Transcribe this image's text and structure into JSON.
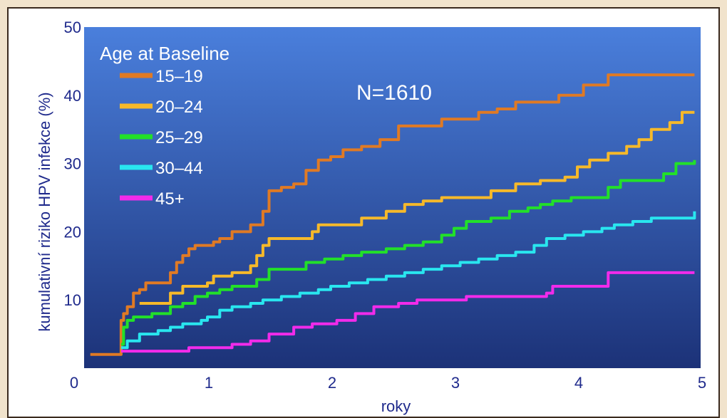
{
  "chart_data": {
    "type": "line",
    "line_style": "step",
    "title": "",
    "xlabel": "roky",
    "ylabel": "kumulativní riziko HPV infekce (%)",
    "xlim": [
      0,
      5
    ],
    "ylim": [
      0,
      50
    ],
    "x_ticks": [
      "0",
      "1",
      "2",
      "3",
      "4",
      "5"
    ],
    "y_ticks": [
      "10",
      "20",
      "30",
      "40",
      "50"
    ],
    "grid": false,
    "background_gradient": [
      "#4a7fdc",
      "#1c3278"
    ],
    "annotation": "N=1610",
    "legend": {
      "title": "Age at Baseline",
      "placement": "top-left"
    },
    "series": [
      {
        "name": "15–19",
        "color": "#e07a24",
        "points": [
          [
            0.05,
            2
          ],
          [
            0.28,
            2
          ],
          [
            0.3,
            7
          ],
          [
            0.32,
            8
          ],
          [
            0.35,
            9
          ],
          [
            0.4,
            11
          ],
          [
            0.45,
            11.5
          ],
          [
            0.5,
            12.5
          ],
          [
            0.6,
            12.5
          ],
          [
            0.7,
            14
          ],
          [
            0.75,
            15.5
          ],
          [
            0.8,
            16.5
          ],
          [
            0.85,
            17.5
          ],
          [
            0.9,
            18
          ],
          [
            1.0,
            18
          ],
          [
            1.05,
            18.5
          ],
          [
            1.1,
            19
          ],
          [
            1.2,
            20
          ],
          [
            1.35,
            21
          ],
          [
            1.45,
            23
          ],
          [
            1.5,
            26
          ],
          [
            1.6,
            26.5
          ],
          [
            1.7,
            27
          ],
          [
            1.8,
            29
          ],
          [
            1.9,
            30.5
          ],
          [
            2.0,
            31
          ],
          [
            2.1,
            32
          ],
          [
            2.25,
            32.5
          ],
          [
            2.4,
            33.5
          ],
          [
            2.55,
            35.5
          ],
          [
            2.7,
            35.5
          ],
          [
            2.9,
            36.5
          ],
          [
            3.05,
            36.5
          ],
          [
            3.2,
            37.5
          ],
          [
            3.35,
            38
          ],
          [
            3.5,
            39
          ],
          [
            3.65,
            39
          ],
          [
            3.85,
            40
          ],
          [
            4.05,
            41.5
          ],
          [
            4.25,
            43
          ],
          [
            4.5,
            43
          ],
          [
            4.95,
            43
          ]
        ]
      },
      {
        "name": "20–24",
        "color": "#f6b92a",
        "points": [
          [
            0.45,
            9.5
          ],
          [
            0.65,
            9.5
          ],
          [
            0.7,
            11
          ],
          [
            0.8,
            12
          ],
          [
            1.0,
            12.5
          ],
          [
            1.05,
            13.5
          ],
          [
            1.2,
            14
          ],
          [
            1.35,
            15
          ],
          [
            1.4,
            16.5
          ],
          [
            1.45,
            18
          ],
          [
            1.5,
            19
          ],
          [
            1.6,
            19
          ],
          [
            1.75,
            19
          ],
          [
            1.85,
            20
          ],
          [
            1.9,
            21
          ],
          [
            2.1,
            21
          ],
          [
            2.25,
            22
          ],
          [
            2.45,
            23
          ],
          [
            2.6,
            24
          ],
          [
            2.75,
            24.5
          ],
          [
            2.9,
            25
          ],
          [
            3.1,
            25
          ],
          [
            3.3,
            26
          ],
          [
            3.5,
            27
          ],
          [
            3.7,
            27.5
          ],
          [
            3.9,
            28
          ],
          [
            4.0,
            29.5
          ],
          [
            4.1,
            30.5
          ],
          [
            4.25,
            31.5
          ],
          [
            4.4,
            32.5
          ],
          [
            4.5,
            33.5
          ],
          [
            4.6,
            35
          ],
          [
            4.75,
            36
          ],
          [
            4.85,
            37.5
          ],
          [
            4.95,
            37.5
          ]
        ]
      },
      {
        "name": "25–29",
        "color": "#22e029",
        "points": [
          [
            0.3,
            3.5
          ],
          [
            0.32,
            6
          ],
          [
            0.35,
            7
          ],
          [
            0.4,
            7.5
          ],
          [
            0.5,
            7.5
          ],
          [
            0.55,
            8
          ],
          [
            0.65,
            8
          ],
          [
            0.7,
            9
          ],
          [
            0.8,
            9.5
          ],
          [
            0.9,
            10.5
          ],
          [
            1.0,
            11
          ],
          [
            1.1,
            11.5
          ],
          [
            1.2,
            12
          ],
          [
            1.35,
            12
          ],
          [
            1.4,
            13
          ],
          [
            1.5,
            14.5
          ],
          [
            1.6,
            14.5
          ],
          [
            1.8,
            15.5
          ],
          [
            1.95,
            16
          ],
          [
            2.1,
            16.5
          ],
          [
            2.25,
            17
          ],
          [
            2.45,
            17.5
          ],
          [
            2.6,
            18
          ],
          [
            2.75,
            18.5
          ],
          [
            2.9,
            19.5
          ],
          [
            3.0,
            20.5
          ],
          [
            3.1,
            21.5
          ],
          [
            3.3,
            22
          ],
          [
            3.45,
            23
          ],
          [
            3.6,
            23.5
          ],
          [
            3.7,
            24
          ],
          [
            3.8,
            24.5
          ],
          [
            3.95,
            25
          ],
          [
            4.1,
            25
          ],
          [
            4.2,
            25
          ],
          [
            4.25,
            26.5
          ],
          [
            4.35,
            27.5
          ],
          [
            4.6,
            27.5
          ],
          [
            4.7,
            28.5
          ],
          [
            4.8,
            30
          ],
          [
            4.95,
            30.5
          ]
        ]
      },
      {
        "name": "30–44",
        "color": "#29e6ef",
        "points": [
          [
            0.3,
            3
          ],
          [
            0.35,
            4
          ],
          [
            0.45,
            5
          ],
          [
            0.6,
            5.5
          ],
          [
            0.7,
            6
          ],
          [
            0.8,
            6.5
          ],
          [
            0.95,
            7
          ],
          [
            1.0,
            7.5
          ],
          [
            1.1,
            8.5
          ],
          [
            1.2,
            9
          ],
          [
            1.35,
            9.5
          ],
          [
            1.45,
            10
          ],
          [
            1.6,
            10.5
          ],
          [
            1.75,
            11
          ],
          [
            1.9,
            11.5
          ],
          [
            2.0,
            12
          ],
          [
            2.15,
            12.5
          ],
          [
            2.3,
            13
          ],
          [
            2.45,
            13.5
          ],
          [
            2.6,
            14
          ],
          [
            2.75,
            14.5
          ],
          [
            2.9,
            15
          ],
          [
            3.05,
            15.5
          ],
          [
            3.2,
            16
          ],
          [
            3.35,
            16.5
          ],
          [
            3.5,
            17
          ],
          [
            3.65,
            18
          ],
          [
            3.75,
            19
          ],
          [
            3.9,
            19.5
          ],
          [
            4.05,
            20
          ],
          [
            4.2,
            20.5
          ],
          [
            4.3,
            21
          ],
          [
            4.45,
            21.5
          ],
          [
            4.6,
            22
          ],
          [
            4.75,
            22
          ],
          [
            4.85,
            22
          ],
          [
            4.95,
            23
          ]
        ]
      },
      {
        "name": "45+",
        "color": "#f12bea",
        "points": [
          [
            0.3,
            2.5
          ],
          [
            0.45,
            2.5
          ],
          [
            0.65,
            2.5
          ],
          [
            0.7,
            2.5
          ],
          [
            0.85,
            3
          ],
          [
            1.0,
            3
          ],
          [
            1.2,
            3.5
          ],
          [
            1.35,
            4
          ],
          [
            1.5,
            5
          ],
          [
            1.7,
            6
          ],
          [
            1.85,
            6.5
          ],
          [
            2.05,
            7
          ],
          [
            2.2,
            8
          ],
          [
            2.35,
            9
          ],
          [
            2.55,
            9.5
          ],
          [
            2.7,
            10
          ],
          [
            3.0,
            10
          ],
          [
            3.1,
            10.5
          ],
          [
            3.4,
            10.5
          ],
          [
            3.75,
            11
          ],
          [
            3.8,
            12
          ],
          [
            4.0,
            12
          ],
          [
            4.2,
            12
          ],
          [
            4.25,
            14
          ],
          [
            4.95,
            14
          ]
        ]
      }
    ]
  }
}
